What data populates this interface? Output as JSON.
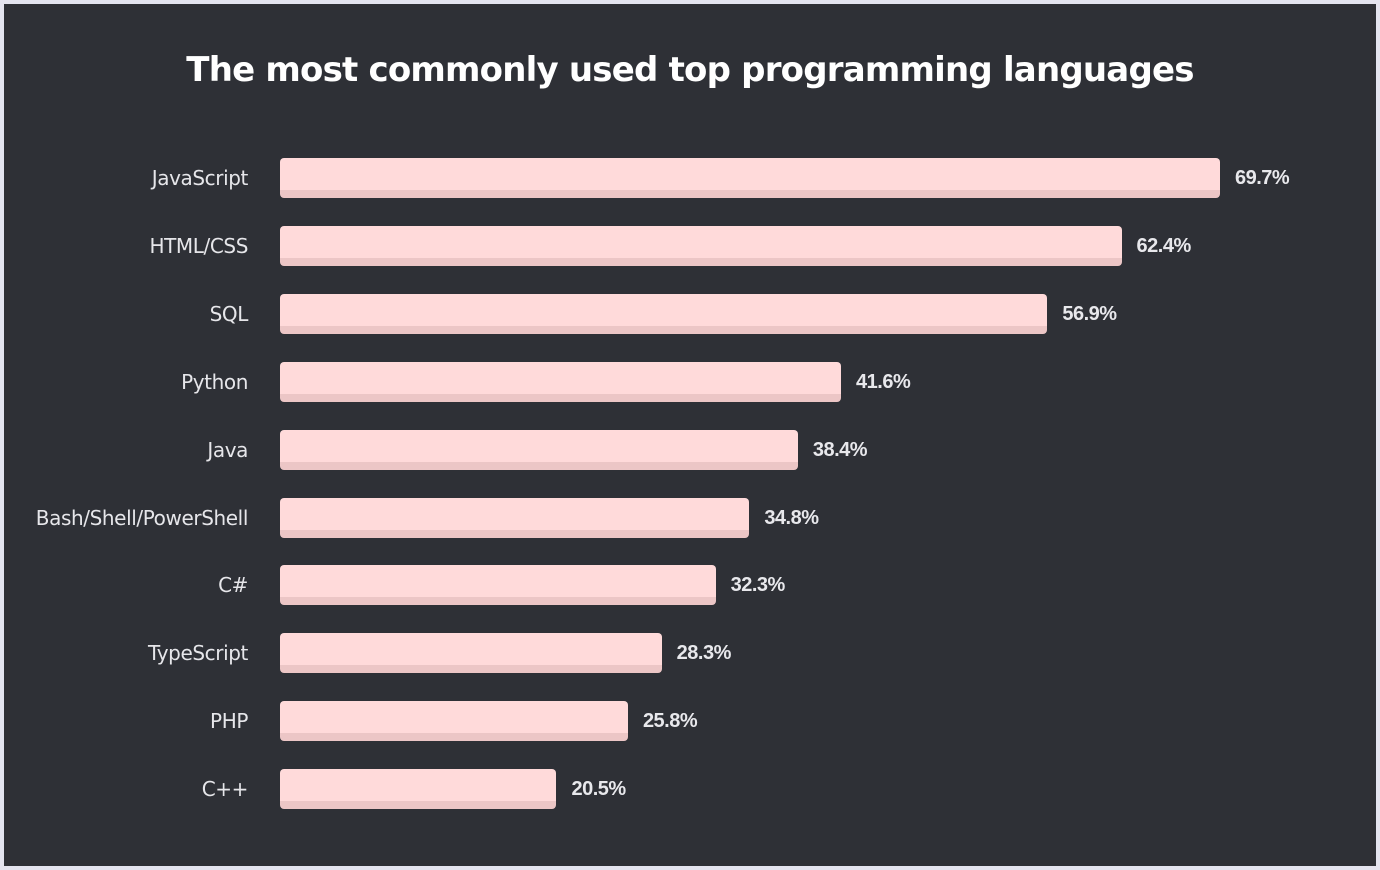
{
  "chart_data": {
    "type": "bar",
    "orientation": "horizontal",
    "title": "The most commonly used top programming languages",
    "xlabel": "",
    "ylabel": "",
    "categories": [
      "JavaScript",
      "HTML/CSS",
      "SQL",
      "Python",
      "Java",
      "Bash/Shell/PowerShell",
      "C#",
      "TypeScript",
      "PHP",
      "C++"
    ],
    "values": [
      69.7,
      62.4,
      56.9,
      41.6,
      38.4,
      34.8,
      32.3,
      28.3,
      25.8,
      20.5
    ],
    "value_labels": [
      "69.7%",
      "62.4%",
      "56.9%",
      "41.6%",
      "38.4%",
      "34.8%",
      "32.3%",
      "28.3%",
      "25.8%",
      "20.5%"
    ],
    "unit": "%",
    "xlim": [
      0,
      69.7
    ],
    "grid": false,
    "legend": null,
    "bar_color": "#ffdada",
    "background_color": "#2e3036"
  },
  "title": "The most commonly used top programming languages",
  "rows": [
    {
      "label": "JavaScript",
      "value_label": "69.7%"
    },
    {
      "label": "HTML/CSS",
      "value_label": "62.4%"
    },
    {
      "label": "SQL",
      "value_label": "56.9%"
    },
    {
      "label": "Python",
      "value_label": "41.6%"
    },
    {
      "label": "Java",
      "value_label": "38.4%"
    },
    {
      "label": "Bash/Shell/PowerShell",
      "value_label": "34.8%"
    },
    {
      "label": "C#",
      "value_label": "32.3%"
    },
    {
      "label": "TypeScript",
      "value_label": "28.3%"
    },
    {
      "label": "PHP",
      "value_label": "25.8%"
    },
    {
      "label": "C++",
      "value_label": "20.5%"
    }
  ]
}
